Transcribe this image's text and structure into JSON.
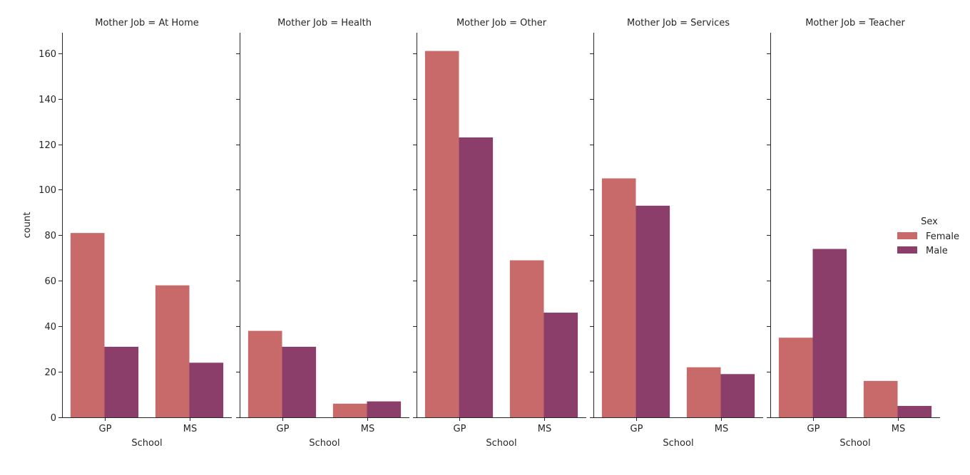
{
  "chart_data": {
    "type": "bar",
    "ylabel": "count",
    "ylim": [
      0,
      169
    ],
    "yticks": [
      0,
      20,
      40,
      60,
      80,
      100,
      120,
      140,
      160
    ],
    "categories": [
      "GP",
      "MS"
    ],
    "legend": {
      "title": "Sex",
      "placement": "right",
      "entries": [
        "Female",
        "Male"
      ]
    },
    "colors": {
      "Female": "#c96a6a",
      "Male": "#8c3e6b"
    },
    "panels": [
      {
        "title": "Mother Job = At Home",
        "xlabel": "School",
        "series": [
          {
            "name": "Female",
            "values": [
              81,
              58
            ]
          },
          {
            "name": "Male",
            "values": [
              31,
              24
            ]
          }
        ]
      },
      {
        "title": "Mother Job = Health",
        "xlabel": "School",
        "series": [
          {
            "name": "Female",
            "values": [
              38,
              6
            ]
          },
          {
            "name": "Male",
            "values": [
              31,
              7
            ]
          }
        ]
      },
      {
        "title": "Mother Job = Other",
        "xlabel": "School",
        "series": [
          {
            "name": "Female",
            "values": [
              161,
              69
            ]
          },
          {
            "name": "Male",
            "values": [
              123,
              46
            ]
          }
        ]
      },
      {
        "title": "Mother Job = Services",
        "xlabel": "School",
        "series": [
          {
            "name": "Female",
            "values": [
              105,
              22
            ]
          },
          {
            "name": "Male",
            "values": [
              93,
              19
            ]
          }
        ]
      },
      {
        "title": "Mother Job = Teacher",
        "xlabel": "School",
        "series": [
          {
            "name": "Female",
            "values": [
              35,
              16
            ]
          },
          {
            "name": "Male",
            "values": [
              74,
              5
            ]
          }
        ]
      }
    ]
  }
}
